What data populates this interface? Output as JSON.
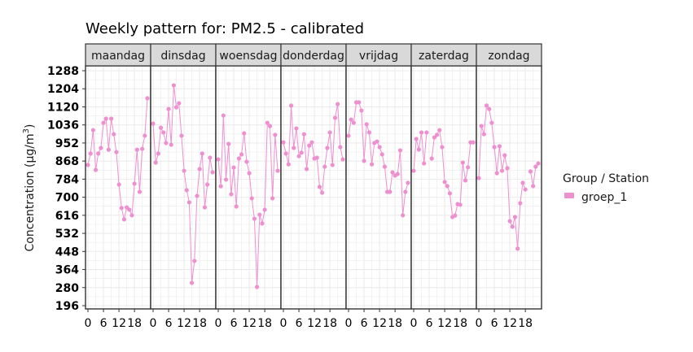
{
  "chart_data": {
    "type": "line",
    "title": "Weekly pattern for: PM2.5 - calibrated",
    "xlabel": "",
    "ylabel": "Concentration (µg/m³)",
    "ylabel_main": "Concentration (µg/m",
    "ylabel_sup": "3",
    "ylabel_close": ")",
    "ylim": [
      196,
      1288
    ],
    "yticks": [
      196,
      280,
      364,
      448,
      532,
      616,
      700,
      784,
      868,
      952,
      1036,
      1120,
      1204,
      1288
    ],
    "xticks": [
      0,
      6,
      12,
      18
    ],
    "xlim": [
      0,
      23
    ],
    "grid": true,
    "legend": {
      "title": "Group / Station",
      "position": "right",
      "entries": [
        {
          "name": "groep_1",
          "color": "#EE90D0"
        }
      ]
    },
    "facets": [
      "maandag",
      "dinsdag",
      "woensdag",
      "donderdag",
      "vrijdag",
      "zaterdag",
      "zondag"
    ],
    "x": [
      0,
      1,
      2,
      3,
      4,
      5,
      6,
      7,
      8,
      9,
      10,
      11,
      12,
      13,
      14,
      15,
      16,
      17,
      18,
      19,
      20,
      21,
      22,
      23
    ],
    "series": [
      {
        "name": "groep_1",
        "facet": "maandag",
        "values": [
          850,
          903,
          1012,
          827,
          903,
          929,
          1046,
          1065,
          921,
          1065,
          993,
          910,
          759,
          650,
          597,
          653,
          642,
          616,
          763,
          921,
          725,
          925,
          986,
          1160
        ]
      },
      {
        "name": "groep_1",
        "facet": "dinsdag",
        "values": [
          1042,
          861,
          903,
          1023,
          1001,
          952,
          1110,
          944,
          1220,
          1118,
          1137,
          986,
          823,
          733,
          676,
          302,
          404,
          706,
          831,
          903,
          653,
          759,
          884,
          816
        ]
      },
      {
        "name": "groep_1",
        "facet": "woensdag",
        "values": [
          876,
          751,
          1080,
          782,
          948,
          714,
          838,
          657,
          880,
          899,
          997,
          865,
          812,
          695,
          600,
          283,
          619,
          578,
          642,
          1046,
          1031,
          695,
          990,
          823
        ]
      },
      {
        "name": "groep_1",
        "facet": "donderdag",
        "values": [
          955,
          903,
          853,
          1126,
          929,
          1020,
          891,
          907,
          993,
          831,
          940,
          955,
          880,
          884,
          748,
          721,
          842,
          929,
          1001,
          850,
          1069,
          1133,
          933,
          876
        ]
      },
      {
        "name": "groep_1",
        "facet": "vrijdag",
        "values": [
          986,
          1061,
          1046,
          1141,
          1141,
          1103,
          869,
          1039,
          1001,
          853,
          952,
          959,
          933,
          899,
          842,
          725,
          725,
          816,
          801,
          808,
          918,
          616,
          725,
          767
        ]
      },
      {
        "name": "groep_1",
        "facet": "zaterdag",
        "values": [
          823,
          971,
          922,
          1001,
          857,
          1001,
          null,
          880,
          978,
          990,
          1012,
          933,
          771,
          752,
          718,
          608,
          615,
          668,
          665,
          861,
          778,
          839,
          955,
          955
        ]
      },
      {
        "name": "groep_1",
        "facet": "zondag",
        "values": [
          789,
          1031,
          993,
          1126,
          1110,
          1046,
          933,
          812,
          937,
          823,
          895,
          835,
          589,
          563,
          608,
          461,
          672,
          767,
          736,
          null,
          820,
          752,
          842,
          857
        ]
      }
    ]
  },
  "colors": {
    "series": "#EE90D0",
    "strip_bg": "#D9D9D9",
    "strip_border": "#333333",
    "grid": "#EBEBEB",
    "panel_border": "#333333"
  }
}
